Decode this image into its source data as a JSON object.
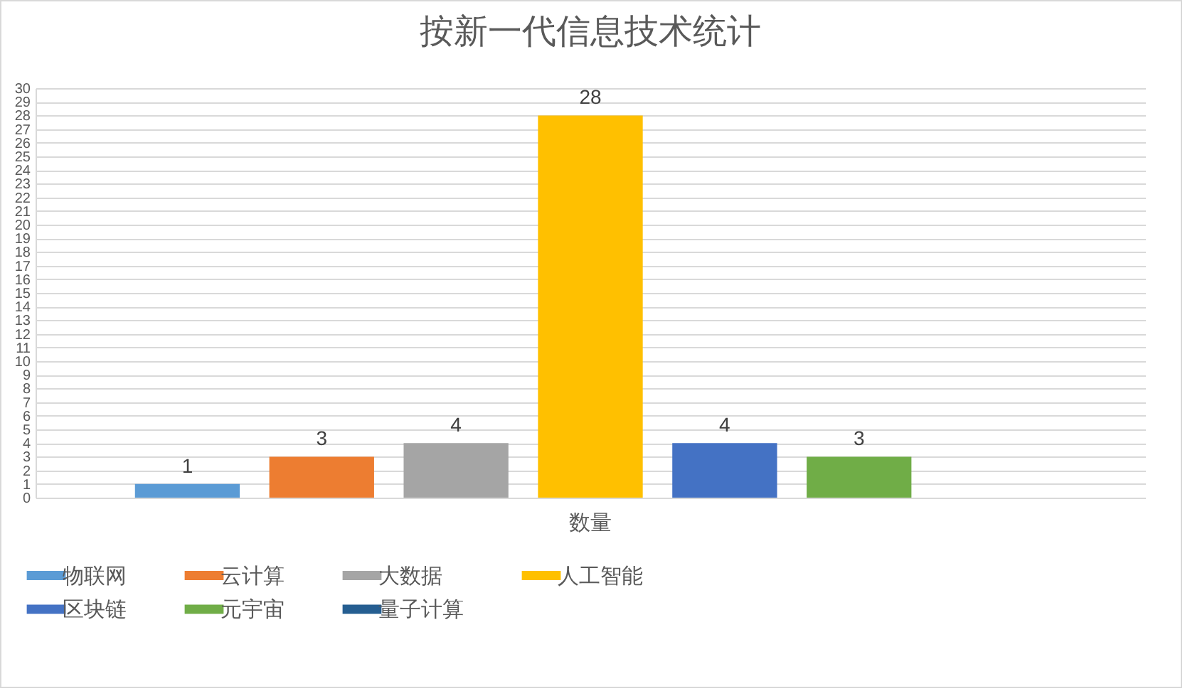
{
  "chart_data": {
    "type": "bar",
    "title": "按新一代信息技术统计",
    "categories": [
      "数量"
    ],
    "series": [
      {
        "name": "物联网",
        "color": "#5b9bd5",
        "values": [
          1
        ],
        "value_labels": [
          "1"
        ]
      },
      {
        "name": "云计算",
        "color": "#ed7d31",
        "values": [
          3
        ],
        "value_labels": [
          "3"
        ]
      },
      {
        "name": "大数据",
        "color": "#a5a5a5",
        "values": [
          4
        ],
        "value_labels": [
          "4"
        ]
      },
      {
        "name": "人工智能",
        "color": "#ffc000",
        "values": [
          28
        ],
        "value_labels": [
          "28"
        ]
      },
      {
        "name": "区块链",
        "color": "#4472c4",
        "values": [
          4
        ],
        "value_labels": [
          "4"
        ]
      },
      {
        "name": "元宇宙",
        "color": "#70ad47",
        "values": [
          3
        ],
        "value_labels": [
          "3"
        ]
      },
      {
        "name": "量子计算",
        "color": "#255e91",
        "values": [
          0
        ],
        "value_labels": [
          null
        ]
      }
    ],
    "ylim": [
      0,
      30
    ],
    "yticks": [
      0,
      1,
      2,
      3,
      4,
      5,
      6,
      7,
      8,
      9,
      10,
      11,
      12,
      13,
      14,
      15,
      16,
      17,
      18,
      19,
      20,
      21,
      22,
      23,
      24,
      25,
      26,
      27,
      28,
      29,
      30
    ],
    "grid": "y",
    "legend": "bottom"
  }
}
